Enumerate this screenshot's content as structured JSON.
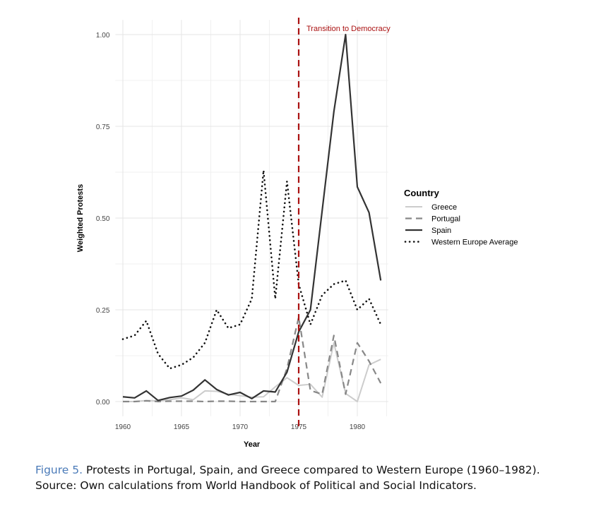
{
  "chart_data": {
    "type": "line",
    "xlabel": "Year",
    "ylabel": "Weighted Protests",
    "xlim": [
      1959,
      1983
    ],
    "ylim": [
      -0.04,
      1.04
    ],
    "xticks": [
      1960,
      1965,
      1970,
      1975,
      1980
    ],
    "yticks": [
      {
        "v": 0,
        "label": "0.00"
      },
      {
        "v": 0.25,
        "label": "0.25"
      },
      {
        "v": 0.5,
        "label": "0.50"
      },
      {
        "v": 0.75,
        "label": "0.75"
      },
      {
        "v": 1,
        "label": "1.00"
      }
    ],
    "grid": true,
    "x": [
      1960,
      1961,
      1962,
      1963,
      1964,
      1965,
      1966,
      1967,
      1968,
      1969,
      1970,
      1971,
      1972,
      1973,
      1974,
      1975,
      1976,
      1977,
      1978,
      1979,
      1980,
      1981,
      1982
    ],
    "series": [
      {
        "name": "Greece",
        "style": "solid-light",
        "color": "#cccccc",
        "values": [
          0,
          0,
          0.003,
          0.002,
          0.005,
          0.01,
          0.005,
          0.029,
          0.028,
          0.02,
          0.016,
          0.012,
          0.013,
          0.04,
          0.065,
          0.044,
          0.047,
          0.012,
          0.16,
          0.022,
          0,
          0.1,
          0.115
        ]
      },
      {
        "name": "Portugal",
        "style": "dashed",
        "color": "#888888",
        "values": [
          0,
          0,
          0.002,
          0,
          0.001,
          0.001,
          0.001,
          0,
          0.001,
          0.001,
          0,
          0,
          0,
          0,
          0.09,
          0.23,
          0.03,
          0.02,
          0.18,
          0.02,
          0.16,
          0.11,
          0.05
        ]
      },
      {
        "name": "Spain",
        "style": "solid",
        "color": "#333333",
        "values": [
          0.013,
          0.01,
          0.029,
          0.003,
          0.011,
          0.015,
          0.031,
          0.059,
          0.033,
          0.018,
          0.025,
          0.008,
          0.029,
          0.026,
          0.08,
          0.19,
          0.25,
          0.52,
          0.79,
          1.0,
          0.585,
          0.515,
          0.33
        ]
      },
      {
        "name": "Western Europe Average",
        "style": "dotted",
        "color": "#111111",
        "values": [
          0.17,
          0.18,
          0.22,
          0.13,
          0.09,
          0.1,
          0.12,
          0.16,
          0.25,
          0.2,
          0.21,
          0.28,
          0.63,
          0.28,
          0.6,
          0.32,
          0.21,
          0.29,
          0.32,
          0.33,
          0.25,
          0.28,
          0.21
        ]
      }
    ],
    "vline": {
      "x": 1975,
      "label": "Transition to Democracy",
      "color": "#aa1111"
    },
    "legend": {
      "title": "Country",
      "placement": "right"
    }
  },
  "caption": {
    "figure": "Figure 5.",
    "line1": " Protests in Portugal, Spain, and Greece compared to Western Europe (1960–1982).",
    "line2": "Source: Own calculations from World Handbook of Political and Social Indicators."
  }
}
